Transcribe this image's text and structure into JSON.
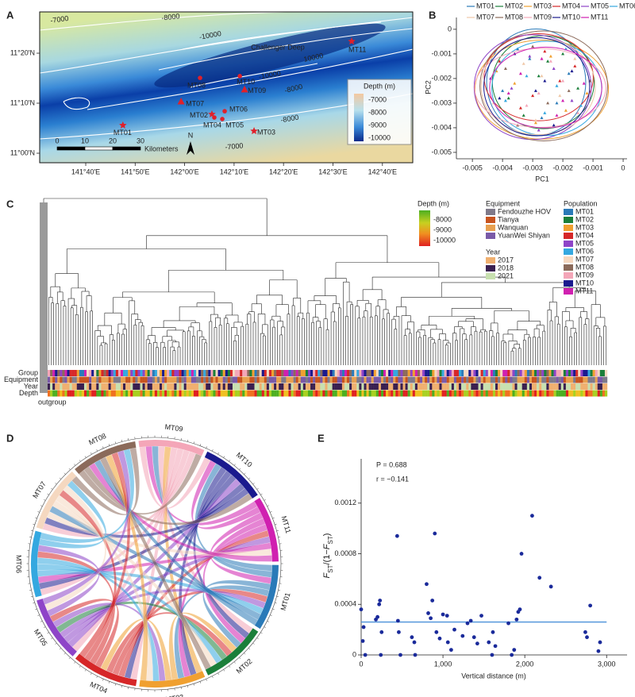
{
  "panel_labels": [
    "A",
    "B",
    "C",
    "D",
    "E"
  ],
  "map": {
    "lonlim": [
      141.5115,
      142.7689
    ],
    "latlim": [
      10.9683,
      11.4709
    ],
    "lon_ticks": [
      {
        "value": 141.6667,
        "label": "141°40'E"
      },
      {
        "value": 141.8333,
        "label": "141°50'E"
      },
      {
        "value": 142.0,
        "label": "142°00'E"
      },
      {
        "value": 142.1667,
        "label": "142°10'E"
      },
      {
        "value": 142.3333,
        "label": "142°20'E"
      },
      {
        "value": 142.5,
        "label": "142°30'E"
      },
      {
        "value": 142.6667,
        "label": "142°40'E"
      }
    ],
    "lat_ticks": [
      {
        "value": 11.3333,
        "label": "11°20'N"
      },
      {
        "value": 11.1667,
        "label": "11°10'N"
      },
      {
        "value": 11.0,
        "label": "11°00'N"
      }
    ],
    "sites": [
      {
        "name": "MT01",
        "lon": 141.792,
        "lat": 11.093,
        "marker": "star"
      },
      {
        "name": "MT02",
        "lon": 142.092,
        "lat": 11.13,
        "marker": "star"
      },
      {
        "name": "MT03",
        "lon": 142.234,
        "lat": 11.074,
        "marker": "star"
      },
      {
        "name": "MT04",
        "lon": 142.1,
        "lat": 11.119,
        "marker": "circle"
      },
      {
        "name": "MT05",
        "lon": 142.127,
        "lat": 11.114,
        "marker": "circle"
      },
      {
        "name": "MT06",
        "lon": 142.135,
        "lat": 11.14,
        "marker": "circle"
      },
      {
        "name": "MT07",
        "lon": 141.988,
        "lat": 11.172,
        "marker": "triangle"
      },
      {
        "name": "MT08",
        "lon": 142.052,
        "lat": 11.251,
        "marker": "circle"
      },
      {
        "name": "MT09",
        "lon": 142.202,
        "lat": 11.212,
        "marker": "triangle"
      },
      {
        "name": "MT10",
        "lon": 142.186,
        "lat": 11.257,
        "marker": "circle"
      },
      {
        "name": "MT11",
        "lon": 142.563,
        "lat": 11.373,
        "marker": "star"
      }
    ],
    "feature_label": "Challenger Deep",
    "contour_labels": [
      "-7000",
      "-8000",
      "-10000",
      "10000",
      "-10000",
      "-8000",
      "-8000",
      "-7000"
    ],
    "depth_legend": {
      "title": "Depth (m)",
      "labels": [
        "-7000",
        "-8000",
        "-9000",
        "-10000"
      ]
    },
    "scale_bar": {
      "labels": [
        "0",
        "10",
        "20",
        "30"
      ],
      "unit": "Kilometers"
    },
    "north": "N"
  },
  "chart_data": [
    {
      "type": "scatter",
      "x_label": "PC1",
      "y_label": "PC2",
      "xlim": [
        -0.00553,
        0.00013
      ],
      "ylim": [
        -0.00526,
        0.00048
      ],
      "xticks": [
        -0.005,
        -0.004,
        -0.003,
        -0.002,
        -0.001,
        0
      ],
      "yticks": [
        0,
        -0.001,
        -0.002,
        -0.003,
        -0.004,
        -0.005
      ],
      "series": [
        {
          "name": "MT01",
          "color": "#2a7ab8",
          "x": [
            -0.0031,
            -0.0022,
            -0.004,
            -0.0018,
            -0.0027,
            -0.0035
          ],
          "values": [
            -0.0012,
            -0.003,
            -0.0025,
            -0.0018,
            -0.0036,
            -0.0008
          ]
        },
        {
          "name": "MT02",
          "color": "#1b7f3a",
          "x": [
            -0.0028,
            -0.0038,
            -0.002,
            -0.0033,
            -0.0015,
            -0.0025
          ],
          "values": [
            -0.0019,
            -0.0028,
            -0.001,
            -0.0035,
            -0.0024,
            -0.0013
          ]
        },
        {
          "name": "MT03",
          "color": "#f0a030",
          "x": [
            -0.0036,
            -0.0024,
            -0.0019,
            -0.0042,
            -0.0029,
            -0.0012
          ],
          "values": [
            -0.0022,
            -0.0011,
            -0.0033,
            -0.0017,
            -0.0038,
            -0.0026
          ]
        },
        {
          "name": "MT04",
          "color": "#d62728",
          "x": [
            -0.003,
            -0.0041,
            -0.0021,
            -0.0026,
            -0.0034,
            -0.0016
          ],
          "values": [
            -0.0027,
            -0.0013,
            -0.0021,
            -0.0009,
            -0.0032,
            -0.0015
          ]
        },
        {
          "name": "MT05",
          "color": "#8e44c8",
          "x": [
            -0.0023,
            -0.0037,
            -0.0028,
            -0.0017,
            -0.0044,
            -0.0031
          ],
          "values": [
            -0.0016,
            -0.0024,
            -0.0041,
            -0.0029,
            -0.002,
            -0.0011
          ]
        },
        {
          "name": "MT06",
          "color": "#34a8e0",
          "x": [
            -0.0026,
            -0.0019,
            -0.0039,
            -0.0032,
            -0.0022,
            -0.0014
          ],
          "values": [
            -0.0034,
            -0.0008,
            -0.0029,
            -0.0019,
            -0.0023,
            -0.0031
          ]
        },
        {
          "name": "MT07",
          "color": "#f0c8a8",
          "x": [
            -0.0033,
            -0.0021,
            -0.0027,
            -0.0043,
            -0.0016,
            -0.0029
          ],
          "values": [
            -0.0014,
            -0.0027,
            -0.0019,
            -0.003,
            -0.0012,
            -0.0037
          ]
        },
        {
          "name": "MT08",
          "color": "#8b6a5a",
          "x": [
            -0.0025,
            -0.0039,
            -0.0018,
            -0.003,
            -0.0035,
            -0.0011
          ],
          "values": [
            -0.003,
            -0.0016,
            -0.0025,
            -0.0007,
            -0.0039,
            -0.0021
          ]
        },
        {
          "name": "MT09",
          "color": "#f4a6b8",
          "x": [
            -0.002,
            -0.0032,
            -0.0046,
            -0.0024,
            -0.0028,
            -0.0015
          ],
          "values": [
            -0.0021,
            -0.0031,
            -0.0018,
            -0.0013,
            -0.0026,
            -0.0034
          ]
        },
        {
          "name": "MT10",
          "color": "#1a1a8e",
          "x": [
            -0.0029,
            -0.0017,
            -0.0036,
            -0.0023,
            -0.0041,
            -0.0026
          ],
          "values": [
            -0.0025,
            -0.0017,
            -0.001,
            -0.0039,
            -0.0028,
            -0.0021
          ]
        },
        {
          "name": "MT11",
          "color": "#d020b0",
          "x": [
            -0.0034,
            -0.0022,
            -0.0013,
            -0.0038,
            -0.0027,
            -0.002
          ],
          "values": [
            -0.0018,
            -0.0035,
            -0.0022,
            -0.0026,
            -0.0012,
            -0.0029
          ]
        }
      ]
    },
    {
      "type": "scatter",
      "x_label": "Vertical distance (m)",
      "y_label_parts": [
        "F",
        "ST",
        "/(1−",
        "F",
        "ST",
        ")"
      ],
      "annotations": [
        "P = 0.688",
        "r = −0.141"
      ],
      "color": "#1a2a9a",
      "line_color": "#4a90d9",
      "xlim": [
        0,
        3250
      ],
      "ylim": [
        0,
        0.00155
      ],
      "xticks": [
        0,
        {
          "value": 1000,
          "label": "1,000"
        },
        {
          "value": 2000,
          "label": "2,000"
        },
        {
          "value": 3000,
          "label": "3,000"
        }
      ],
      "yticks": [
        0,
        0.0004,
        0.0008,
        0.0012
      ],
      "x": [
        0,
        20,
        30,
        50,
        180,
        200,
        220,
        230,
        240,
        250,
        440,
        450,
        460,
        480,
        620,
        650,
        660,
        800,
        820,
        850,
        870,
        900,
        920,
        960,
        1000,
        1050,
        1060,
        1100,
        1140,
        1240,
        1300,
        1340,
        1380,
        1420,
        1470,
        1560,
        1600,
        1610,
        1640,
        1800,
        1840,
        1870,
        1900,
        1920,
        1940,
        1960,
        2090,
        2180,
        2320,
        2740,
        2760,
        2800,
        2900,
        2920
      ],
      "values": [
        0.00036,
        0.00011,
        0.00022,
        0,
        0.00028,
        0.0003,
        0.0004,
        0.00043,
        0,
        0.00018,
        0.00094,
        0.00027,
        0.00018,
        0,
        0.00014,
        0.0001,
        0,
        0.00056,
        0.00033,
        0.00029,
        0.00043,
        0.00096,
        0.00018,
        0.00013,
        0.00032,
        0.00031,
        0.0001,
        4e-05,
        0.0002,
        0.00015,
        0.00025,
        0.00027,
        0.00014,
        9e-05,
        0.00031,
        0.0001,
        0,
        0.00018,
        7e-05,
        0.00025,
        0,
        4e-05,
        0.00028,
        0.00034,
        0.00036,
        0.0008,
        0.0011,
        0.00061,
        0.00054,
        0.00018,
        0.00014,
        0.00039,
        3e-05,
        0.0001
      ],
      "fit_line": {
        "x": [
          0,
          3000
        ],
        "y": [
          0.00026,
          0.00026
        ]
      }
    }
  ],
  "dendrogram": {
    "tracks": [
      "Group",
      "Equipment",
      "Year",
      "Depth"
    ],
    "outgroup": "outgroup",
    "depth_legend": {
      "title": "Depth (m)",
      "labels": [
        "-8000",
        "-9000",
        "-10000"
      ],
      "colors": [
        "#4caf20",
        "#a8d020",
        "#f0c020",
        "#f07020",
        "#e02020"
      ]
    },
    "equipment": {
      "title": "Equipment",
      "items": [
        {
          "name": "Fendouzhe HOV",
          "color": "#7f7a8a"
        },
        {
          "name": "Tianya",
          "color": "#c8541f"
        },
        {
          "name": "Wanquan",
          "color": "#e8a050"
        },
        {
          "name": "YuanWei Shiyan",
          "color": "#7a5aa8"
        }
      ]
    },
    "year": {
      "title": "Year",
      "items": [
        {
          "name": "2017",
          "color": "#f0b070"
        },
        {
          "name": "2018",
          "color": "#3a2050"
        },
        {
          "name": "2021",
          "color": "#c8e0b0"
        }
      ]
    },
    "population": {
      "title": "Population",
      "items": [
        {
          "name": "MT01",
          "color": "#2a7ab8"
        },
        {
          "name": "MT02",
          "color": "#1b7f3a"
        },
        {
          "name": "MT03",
          "color": "#f0a030"
        },
        {
          "name": "MT04",
          "color": "#d62728"
        },
        {
          "name": "MT05",
          "color": "#8e44c8"
        },
        {
          "name": "MT06",
          "color": "#34a8e0"
        },
        {
          "name": "MT07",
          "color": "#f5d8c0"
        },
        {
          "name": "MT08",
          "color": "#8b6a5a"
        },
        {
          "name": "MT09",
          "color": "#f4a6b8"
        },
        {
          "name": "MT10",
          "color": "#1a1a8e"
        },
        {
          "name": "MT11",
          "color": "#d020b0"
        }
      ]
    }
  },
  "chord": {
    "sectors": [
      "MT09",
      "MT10",
      "MT11",
      "MT01",
      "MT02",
      "MT03",
      "MT04",
      "MT05",
      "MT06",
      "MT07",
      "MT08"
    ]
  }
}
